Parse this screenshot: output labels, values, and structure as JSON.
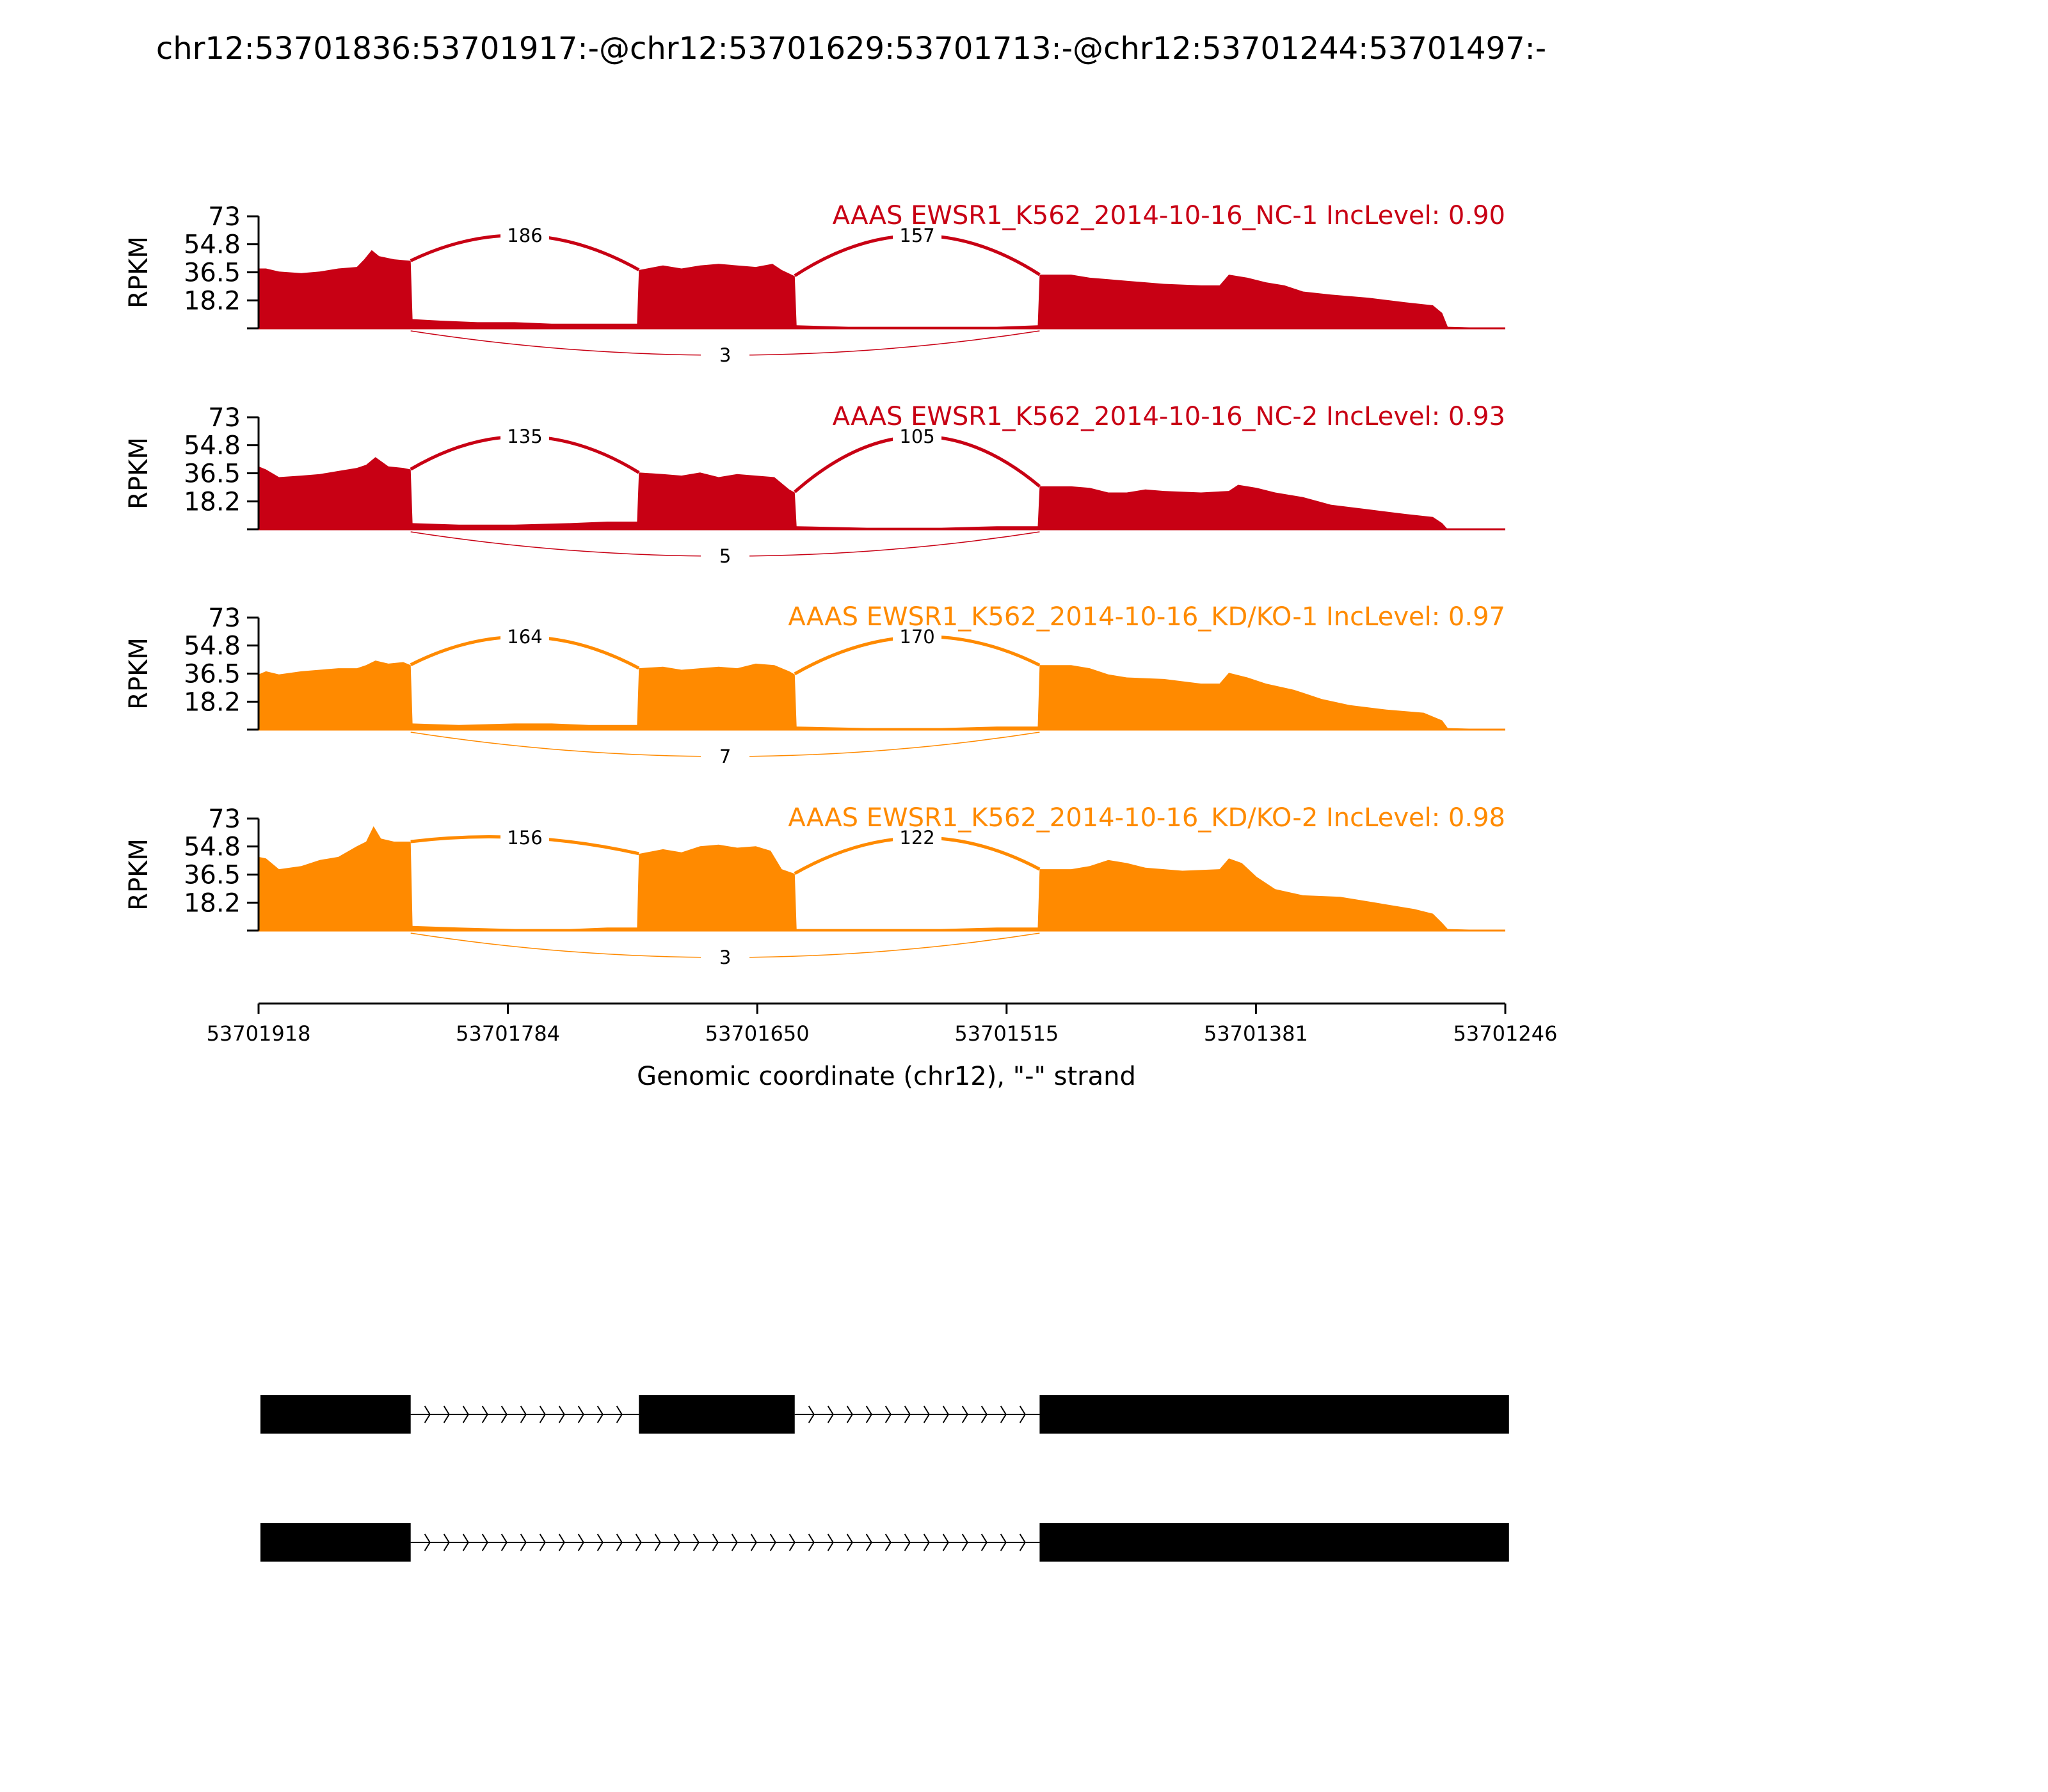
{
  "title": "chr12:53701836:53701917:-@chr12:53701629:53701713:-@chr12:53701244:53701497:-",
  "colors": {
    "nc": "#c80014",
    "kd": "#ff8a00",
    "axis": "#000000",
    "gene": "#000000"
  },
  "chart_data": {
    "type": "area",
    "title": "chr12:53701836:53701917:-@chr12:53701629:53701713:-@chr12:53701244:53701497:-",
    "xlabel": "Genomic coordinate (chr12), \"-\" strand",
    "ylabel": "RPKM",
    "xlim": [
      53701918,
      53701246
    ],
    "x_reversed": true,
    "ylim": [
      0,
      73
    ],
    "ytick_labels": [
      "73",
      "54.8",
      "36.5",
      "18.2"
    ],
    "xtick_labels": [
      "53701918",
      "53701784",
      "53701650",
      "53701515",
      "53701381",
      "53701246"
    ],
    "exons": [
      [
        53701917,
        53701836
      ],
      [
        53701713,
        53701629
      ],
      [
        53701497,
        53701244
      ]
    ],
    "data_end": 53701277,
    "samples": [
      {
        "label": "AAAS EWSR1_K562_2014-10-16_NC-1 IncLevel: 0.90",
        "group": "nc",
        "coverage_points": [
          [
            53701918,
            39
          ],
          [
            53701914,
            39
          ],
          [
            53701907,
            37
          ],
          [
            53701895,
            36
          ],
          [
            53701885,
            37
          ],
          [
            53701875,
            39
          ],
          [
            53701865,
            40
          ],
          [
            53701861,
            45
          ],
          [
            53701857,
            51
          ],
          [
            53701853,
            47
          ],
          [
            53701845,
            45
          ],
          [
            53701836,
            44
          ],
          [
            53701835,
            6
          ],
          [
            53701820,
            5
          ],
          [
            53701800,
            4
          ],
          [
            53701780,
            4
          ],
          [
            53701760,
            3
          ],
          [
            53701740,
            3
          ],
          [
            53701714,
            3
          ],
          [
            53701713,
            38
          ],
          [
            53701700,
            41
          ],
          [
            53701690,
            39
          ],
          [
            53701680,
            41
          ],
          [
            53701670,
            42
          ],
          [
            53701660,
            41
          ],
          [
            53701650,
            40
          ],
          [
            53701641,
            42
          ],
          [
            53701636,
            38
          ],
          [
            53701629,
            34
          ],
          [
            53701628,
            2
          ],
          [
            53701600,
            1
          ],
          [
            53701560,
            1
          ],
          [
            53701520,
            1
          ],
          [
            53701498,
            2
          ],
          [
            53701497,
            35
          ],
          [
            53701480,
            35
          ],
          [
            53701470,
            33
          ],
          [
            53701460,
            32
          ],
          [
            53701450,
            31
          ],
          [
            53701430,
            29
          ],
          [
            53701410,
            28
          ],
          [
            53701400,
            28
          ],
          [
            53701395,
            35
          ],
          [
            53701385,
            33
          ],
          [
            53701375,
            30
          ],
          [
            53701365,
            28
          ],
          [
            53701355,
            24
          ],
          [
            53701340,
            22
          ],
          [
            53701320,
            20
          ],
          [
            53701300,
            17
          ],
          [
            53701285,
            15
          ],
          [
            53701280,
            10
          ],
          [
            53701277,
            1
          ],
          [
            53701246,
            0
          ]
        ],
        "junctions": [
          {
            "count": "186",
            "from": 53701836,
            "to": 53701713,
            "side": "top"
          },
          {
            "count": "157",
            "from": 53701629,
            "to": 53701497,
            "side": "top"
          },
          {
            "count": "3",
            "from": 53701836,
            "to": 53701497,
            "side": "bottom"
          }
        ]
      },
      {
        "label": "AAAS EWSR1_K562_2014-10-16_NC-2 IncLevel: 0.93",
        "group": "nc",
        "coverage_points": [
          [
            53701918,
            41
          ],
          [
            53701914,
            39
          ],
          [
            53701907,
            34
          ],
          [
            53701895,
            35
          ],
          [
            53701885,
            36
          ],
          [
            53701875,
            38
          ],
          [
            53701865,
            40
          ],
          [
            53701860,
            42
          ],
          [
            53701855,
            47
          ],
          [
            53701848,
            41
          ],
          [
            53701840,
            40
          ],
          [
            53701836,
            39
          ],
          [
            53701835,
            4
          ],
          [
            53701810,
            3
          ],
          [
            53701780,
            3
          ],
          [
            53701750,
            4
          ],
          [
            53701730,
            5
          ],
          [
            53701714,
            5
          ],
          [
            53701713,
            37
          ],
          [
            53701700,
            36
          ],
          [
            53701690,
            35
          ],
          [
            53701680,
            37
          ],
          [
            53701670,
            34
          ],
          [
            53701660,
            36
          ],
          [
            53701650,
            35
          ],
          [
            53701640,
            34
          ],
          [
            53701632,
            26
          ],
          [
            53701629,
            24
          ],
          [
            53701628,
            2
          ],
          [
            53701590,
            1
          ],
          [
            53701550,
            1
          ],
          [
            53701520,
            2
          ],
          [
            53701498,
            2
          ],
          [
            53701497,
            28
          ],
          [
            53701480,
            28
          ],
          [
            53701470,
            27
          ],
          [
            53701460,
            24
          ],
          [
            53701450,
            24
          ],
          [
            53701440,
            26
          ],
          [
            53701430,
            25
          ],
          [
            53701410,
            24
          ],
          [
            53701395,
            25
          ],
          [
            53701390,
            29
          ],
          [
            53701380,
            27
          ],
          [
            53701370,
            24
          ],
          [
            53701355,
            21
          ],
          [
            53701340,
            16
          ],
          [
            53701320,
            13
          ],
          [
            53701300,
            10
          ],
          [
            53701285,
            8
          ],
          [
            53701280,
            4
          ],
          [
            53701277,
            0
          ],
          [
            53701246,
            0
          ]
        ],
        "junctions": [
          {
            "count": "135",
            "from": 53701836,
            "to": 53701713,
            "side": "top"
          },
          {
            "count": "105",
            "from": 53701629,
            "to": 53701497,
            "side": "top"
          },
          {
            "count": "5",
            "from": 53701836,
            "to": 53701497,
            "side": "bottom"
          }
        ]
      },
      {
        "label": "AAAS EWSR1_K562_2014-10-16_KD/KO-1 IncLevel: 0.97",
        "group": "kd",
        "coverage_points": [
          [
            53701918,
            36
          ],
          [
            53701914,
            38
          ],
          [
            53701907,
            36
          ],
          [
            53701895,
            38
          ],
          [
            53701885,
            39
          ],
          [
            53701875,
            40
          ],
          [
            53701865,
            40
          ],
          [
            53701860,
            42
          ],
          [
            53701855,
            45
          ],
          [
            53701848,
            43
          ],
          [
            53701840,
            44
          ],
          [
            53701836,
            42
          ],
          [
            53701835,
            4
          ],
          [
            53701810,
            3
          ],
          [
            53701780,
            4
          ],
          [
            53701760,
            4
          ],
          [
            53701740,
            3
          ],
          [
            53701714,
            3
          ],
          [
            53701713,
            40
          ],
          [
            53701700,
            41
          ],
          [
            53701690,
            39
          ],
          [
            53701680,
            40
          ],
          [
            53701670,
            41
          ],
          [
            53701660,
            40
          ],
          [
            53701650,
            43
          ],
          [
            53701640,
            42
          ],
          [
            53701632,
            38
          ],
          [
            53701629,
            36
          ],
          [
            53701628,
            2
          ],
          [
            53701590,
            1
          ],
          [
            53701550,
            1
          ],
          [
            53701520,
            2
          ],
          [
            53701498,
            2
          ],
          [
            53701497,
            42
          ],
          [
            53701480,
            42
          ],
          [
            53701470,
            40
          ],
          [
            53701460,
            36
          ],
          [
            53701450,
            34
          ],
          [
            53701430,
            33
          ],
          [
            53701410,
            30
          ],
          [
            53701400,
            30
          ],
          [
            53701395,
            37
          ],
          [
            53701385,
            34
          ],
          [
            53701375,
            30
          ],
          [
            53701360,
            26
          ],
          [
            53701345,
            20
          ],
          [
            53701330,
            16
          ],
          [
            53701310,
            13
          ],
          [
            53701290,
            11
          ],
          [
            53701280,
            6
          ],
          [
            53701277,
            1
          ],
          [
            53701246,
            0
          ]
        ],
        "junctions": [
          {
            "count": "164",
            "from": 53701836,
            "to": 53701713,
            "side": "top"
          },
          {
            "count": "170",
            "from": 53701629,
            "to": 53701497,
            "side": "top"
          },
          {
            "count": "7",
            "from": 53701836,
            "to": 53701497,
            "side": "bottom"
          }
        ]
      },
      {
        "label": "AAAS EWSR1_K562_2014-10-16_KD/KO-2 IncLevel: 0.98",
        "group": "kd",
        "coverage_points": [
          [
            53701918,
            48
          ],
          [
            53701914,
            47
          ],
          [
            53701907,
            40
          ],
          [
            53701895,
            42
          ],
          [
            53701885,
            46
          ],
          [
            53701875,
            48
          ],
          [
            53701865,
            55
          ],
          [
            53701860,
            58
          ],
          [
            53701856,
            68
          ],
          [
            53701852,
            60
          ],
          [
            53701845,
            58
          ],
          [
            53701836,
            58
          ],
          [
            53701835,
            3
          ],
          [
            53701810,
            2
          ],
          [
            53701780,
            1
          ],
          [
            53701750,
            1
          ],
          [
            53701730,
            2
          ],
          [
            53701714,
            2
          ],
          [
            53701713,
            50
          ],
          [
            53701700,
            53
          ],
          [
            53701690,
            51
          ],
          [
            53701680,
            55
          ],
          [
            53701670,
            56
          ],
          [
            53701660,
            54
          ],
          [
            53701650,
            55
          ],
          [
            53701642,
            52
          ],
          [
            53701636,
            40
          ],
          [
            53701629,
            37
          ],
          [
            53701628,
            1
          ],
          [
            53701590,
            1
          ],
          [
            53701550,
            1
          ],
          [
            53701520,
            2
          ],
          [
            53701498,
            2
          ],
          [
            53701497,
            40
          ],
          [
            53701480,
            40
          ],
          [
            53701470,
            42
          ],
          [
            53701460,
            46
          ],
          [
            53701450,
            44
          ],
          [
            53701440,
            41
          ],
          [
            53701420,
            39
          ],
          [
            53701400,
            40
          ],
          [
            53701395,
            47
          ],
          [
            53701388,
            44
          ],
          [
            53701380,
            35
          ],
          [
            53701370,
            27
          ],
          [
            53701355,
            23
          ],
          [
            53701335,
            22
          ],
          [
            53701315,
            18
          ],
          [
            53701295,
            14
          ],
          [
            53701285,
            11
          ],
          [
            53701280,
            5
          ],
          [
            53701277,
            1
          ],
          [
            53701246,
            0
          ]
        ],
        "junctions": [
          {
            "count": "156",
            "from": 53701836,
            "to": 53701713,
            "side": "top"
          },
          {
            "count": "122",
            "from": 53701629,
            "to": 53701497,
            "side": "top"
          },
          {
            "count": "3",
            "from": 53701836,
            "to": 53701497,
            "side": "bottom"
          }
        ]
      }
    ],
    "isoforms": [
      {
        "exons": [
          [
            53701917,
            53701836
          ],
          [
            53701713,
            53701629
          ],
          [
            53701497,
            53701244
          ]
        ]
      },
      {
        "exons": [
          [
            53701917,
            53701836
          ],
          [
            53701497,
            53701244
          ]
        ]
      }
    ]
  }
}
